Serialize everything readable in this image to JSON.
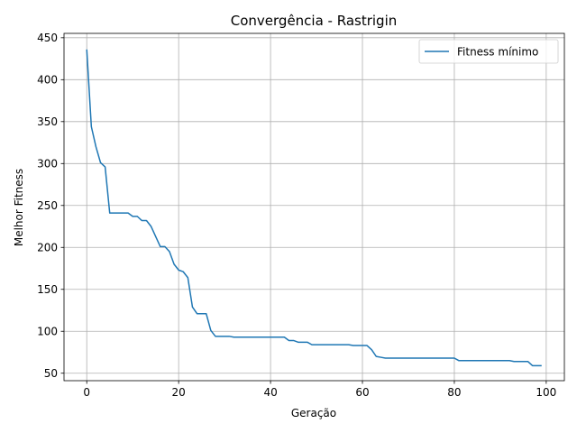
{
  "chart_data": {
    "type": "line",
    "title": "Convergência - Rastrigin",
    "xlabel": "Geração",
    "ylabel": "Melhor Fitness",
    "xlim": [
      -4.95,
      103.95
    ],
    "ylim": [
      41.1,
      455.2
    ],
    "xticks": [
      0,
      20,
      40,
      60,
      80,
      100
    ],
    "yticks": [
      50,
      100,
      150,
      200,
      250,
      300,
      350,
      400,
      450
    ],
    "grid": true,
    "legend": "top-right",
    "series": [
      {
        "name": "Fitness mínimo",
        "color": "#1f77b4",
        "x": [
          0,
          1,
          2,
          3,
          4,
          5,
          6,
          7,
          8,
          9,
          10,
          11,
          12,
          13,
          14,
          15,
          16,
          17,
          18,
          19,
          20,
          21,
          22,
          23,
          24,
          25,
          26,
          27,
          28,
          29,
          30,
          31,
          32,
          33,
          34,
          35,
          36,
          37,
          38,
          39,
          40,
          41,
          42,
          43,
          44,
          45,
          46,
          47,
          48,
          49,
          50,
          51,
          52,
          53,
          54,
          55,
          56,
          57,
          58,
          59,
          60,
          61,
          62,
          63,
          64,
          65,
          66,
          67,
          68,
          69,
          70,
          71,
          72,
          73,
          74,
          75,
          76,
          77,
          78,
          79,
          80,
          81,
          82,
          83,
          84,
          85,
          86,
          87,
          88,
          89,
          90,
          91,
          92,
          93,
          94,
          95,
          96,
          97,
          98,
          99
        ],
        "y": [
          436,
          344,
          320,
          301,
          296,
          241,
          241,
          241,
          241,
          241,
          237,
          237,
          232,
          232,
          225,
          213,
          201,
          201,
          195,
          180,
          173,
          171,
          164,
          129,
          121,
          121,
          121,
          101,
          94,
          94,
          94,
          94,
          93,
          93,
          93,
          93,
          93,
          93,
          93,
          93,
          93,
          93,
          93,
          93,
          89,
          89,
          87,
          87,
          87,
          84,
          84,
          84,
          84,
          84,
          84,
          84,
          84,
          84,
          83,
          83,
          83,
          83,
          78,
          70,
          69,
          68,
          68,
          68,
          68,
          68,
          68,
          68,
          68,
          68,
          68,
          68,
          68,
          68,
          68,
          68,
          68,
          65,
          65,
          65,
          65,
          65,
          65,
          65,
          65,
          65,
          65,
          65,
          65,
          64,
          64,
          64,
          64,
          59,
          59,
          59
        ]
      }
    ]
  }
}
